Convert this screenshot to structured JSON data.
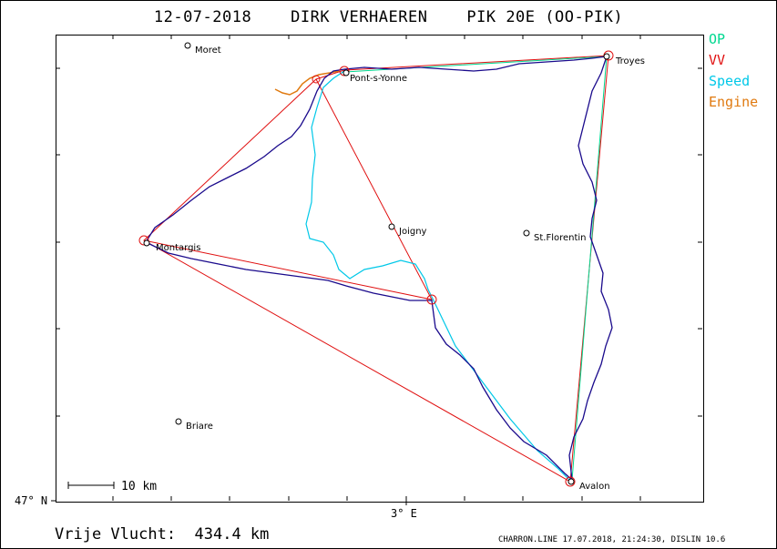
{
  "title": "12-07-2018    DIRK VERHAEREN    PIK 20E (OO-PIK)",
  "legend": {
    "op": "OP",
    "vv": "VV",
    "speed": "Speed",
    "engine": "Engine"
  },
  "colors": {
    "op": "#00d890",
    "vv": "#e01010",
    "speed": "#00c8e8",
    "engine": "#e07a10",
    "track": "#1a0a8c"
  },
  "axes": {
    "lat_label": "47° N",
    "lon_label": "3° E"
  },
  "scale_bar": "10 km",
  "distance": "Vrije Vlucht:  434.4 km",
  "footer": "CHARRON.LINE 17.07.2018, 21:24:30, DISLIN 10.6",
  "towns": [
    {
      "name": "Moret"
    },
    {
      "name": "Pont-s-Yonne"
    },
    {
      "name": "Troyes"
    },
    {
      "name": "Joigny"
    },
    {
      "name": "St.Florentin"
    },
    {
      "name": "Montargis"
    },
    {
      "name": "Briare"
    },
    {
      "name": "Avalon"
    }
  ]
}
